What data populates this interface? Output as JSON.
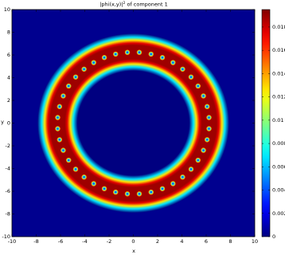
{
  "chart_data": {
    "type": "heatmap",
    "title_base": "|phi(x,y)|",
    "title_sup": "2",
    "title_rest": " of component 1",
    "xlabel": "x",
    "ylabel": "y",
    "xlim": [
      -10,
      10
    ],
    "ylim": [
      -10,
      10
    ],
    "x_ticks": [
      -10,
      -8,
      -6,
      -4,
      -2,
      0,
      2,
      4,
      6,
      8,
      10
    ],
    "y_ticks": [
      -10,
      -8,
      -6,
      -4,
      -2,
      0,
      2,
      4,
      6,
      8,
      10
    ],
    "colorbar": {
      "colormap": "jet",
      "range": [
        0,
        0.0195
      ],
      "ticks": [
        0,
        0.002,
        0.004,
        0.006,
        0.008,
        0.01,
        0.012,
        0.014,
        0.016,
        0.018
      ],
      "tick_labels": [
        "0",
        "0.002",
        "0.004",
        "0.006",
        "0.008",
        "0.01",
        "0.012",
        "0.014",
        "0.016",
        "0.018"
      ]
    },
    "ring": {
      "inner_radius": 5.5,
      "outer_radius": 7.0,
      "peak_value": 0.0195,
      "vortex_count": 40,
      "vortex_radius": 6.25
    },
    "colors": {
      "background": "#00008f",
      "ring": "#d80000",
      "frame": "#000000"
    }
  }
}
